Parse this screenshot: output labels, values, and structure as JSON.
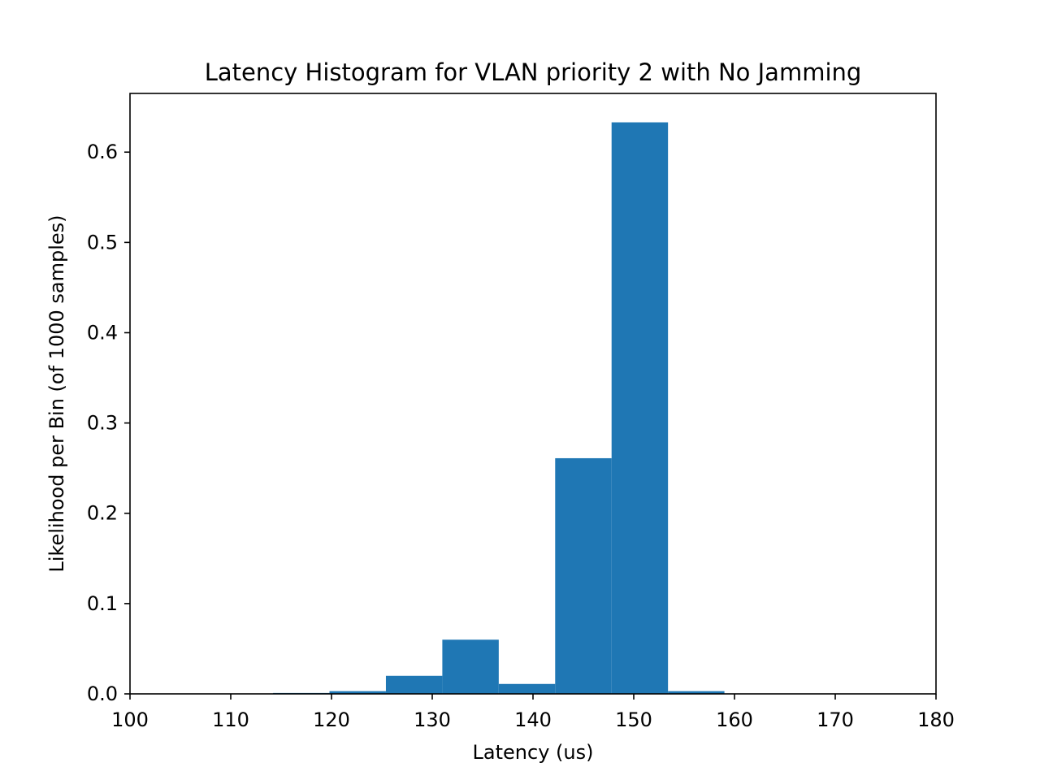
{
  "chart_data": {
    "type": "bar",
    "title": "Latency Histogram for VLAN priority 2 with No Jamming",
    "xlabel": "Latency (us)",
    "ylabel": "Likelihood per Bin (of 1000 samples)",
    "xlim": [
      100,
      180
    ],
    "ylim": [
      0,
      0.665
    ],
    "xticks": [
      100,
      110,
      120,
      130,
      140,
      150,
      160,
      170,
      180
    ],
    "yticks": [
      0.0,
      0.1,
      0.2,
      0.3,
      0.4,
      0.5,
      0.6
    ],
    "ytick_labels": [
      "0.0",
      "0.1",
      "0.2",
      "0.3",
      "0.4",
      "0.5",
      "0.6"
    ],
    "grid": false,
    "color": "#1f77b4",
    "bins": [
      {
        "x0": 114.2,
        "x1": 119.8,
        "value": 0.001
      },
      {
        "x0": 119.8,
        "x1": 125.4,
        "value": 0.003
      },
      {
        "x0": 125.4,
        "x1": 131.0,
        "value": 0.02
      },
      {
        "x0": 131.0,
        "x1": 136.6,
        "value": 0.06
      },
      {
        "x0": 136.6,
        "x1": 142.2,
        "value": 0.011
      },
      {
        "x0": 142.2,
        "x1": 147.8,
        "value": 0.261
      },
      {
        "x0": 147.8,
        "x1": 153.4,
        "value": 0.633
      },
      {
        "x0": 153.4,
        "x1": 159.0,
        "value": 0.003
      }
    ]
  }
}
